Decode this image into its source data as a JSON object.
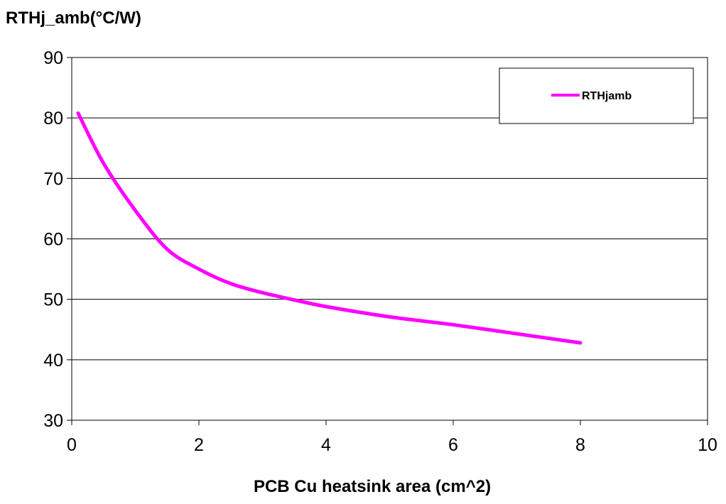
{
  "chart_data": {
    "type": "line",
    "xlabel": "PCB Cu heatsink area (cm^2)",
    "ylabel": "RTHj_amb(°C/W)",
    "xlim": [
      0,
      10
    ],
    "ylim": [
      30,
      90
    ],
    "xticks": [
      0,
      2,
      4,
      6,
      8,
      10
    ],
    "yticks": [
      30,
      40,
      50,
      60,
      70,
      80,
      90
    ],
    "grid": "horizontal",
    "legend_position": "top-right",
    "series": [
      {
        "name": "RTHjamb",
        "color": "#ff00ff",
        "x": [
          0.1,
          0.5,
          1.0,
          1.5,
          2.0,
          2.5,
          3.0,
          3.5,
          4.0,
          5.0,
          6.0,
          7.0,
          8.0
        ],
        "y": [
          80.8,
          72.5,
          64.7,
          58.3,
          55.0,
          52.6,
          51.1,
          49.9,
          48.8,
          47.1,
          45.8,
          44.3,
          42.8
        ]
      }
    ]
  }
}
